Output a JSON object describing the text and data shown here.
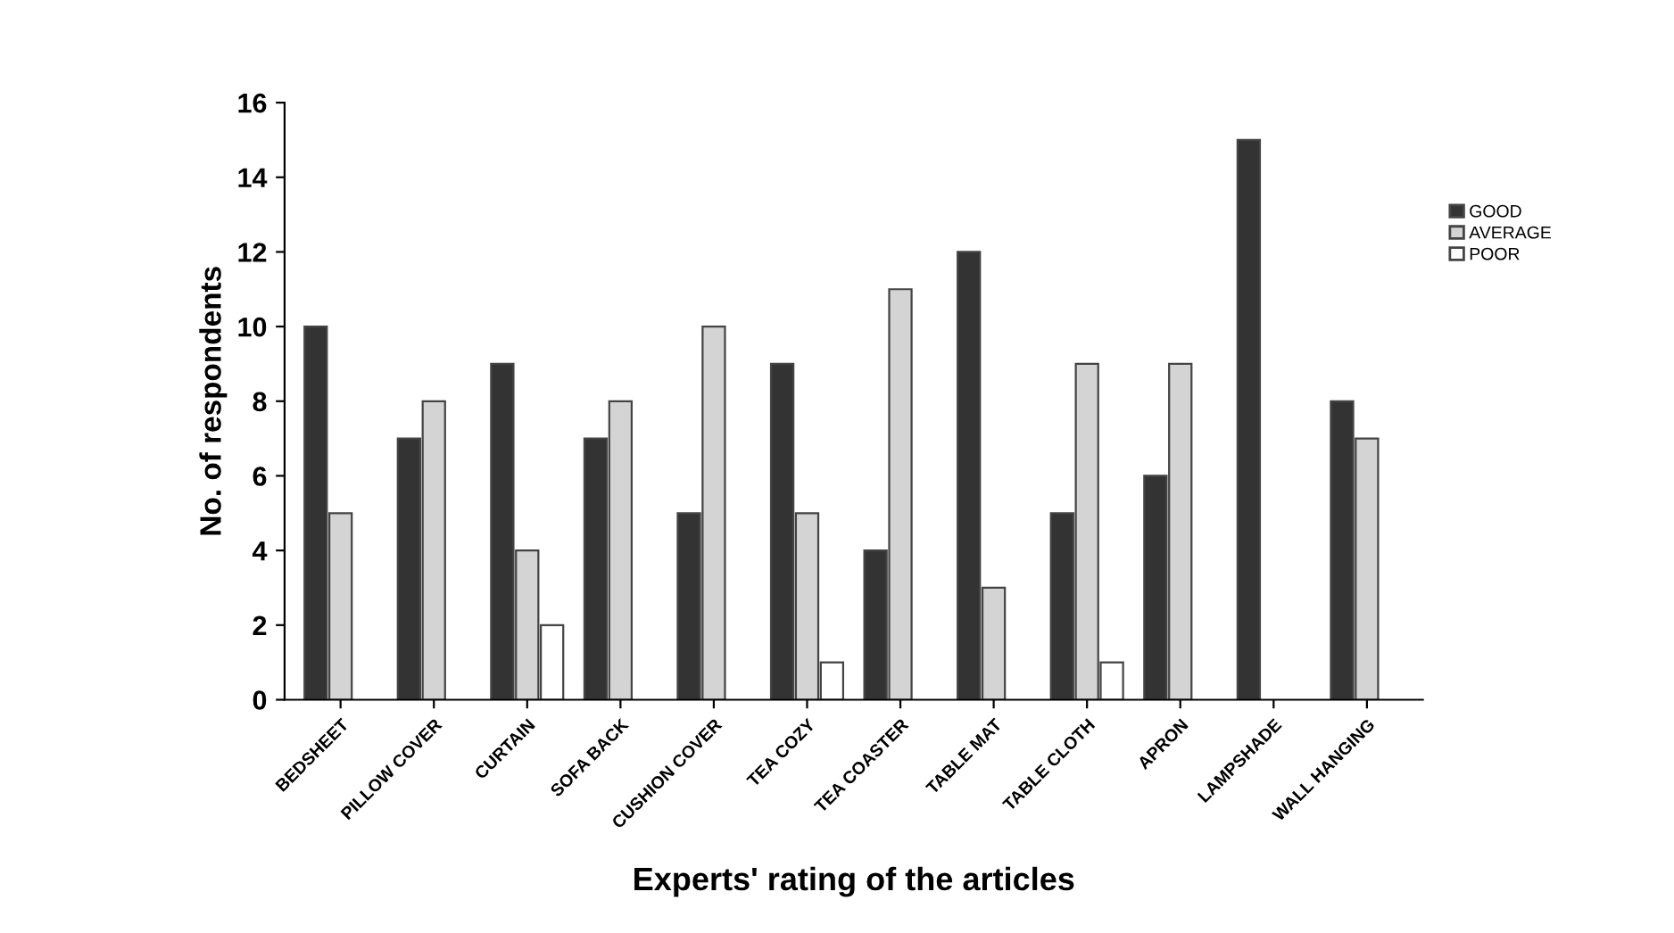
{
  "chart_data": {
    "type": "bar",
    "xlabel": "Experts' rating of the articles",
    "ylabel": "No. of respondents",
    "categories": [
      "BEDSHEET",
      "PILLOW COVER",
      "CURTAIN",
      "SOFA BACK",
      "CUSHION COVER",
      "TEA COZY",
      "TEA COASTER",
      "TABLE MAT",
      "TABLE CLOTH",
      "APRON",
      "LAMPSHADE",
      "WALL HANGING"
    ],
    "series": [
      {
        "name": "GOOD",
        "color": "#333333",
        "values": [
          10,
          7,
          9,
          7,
          5,
          9,
          4,
          12,
          5,
          6,
          15,
          8
        ]
      },
      {
        "name": "AVERAGE",
        "color": "#d4d4d4",
        "values": [
          5,
          8,
          4,
          8,
          10,
          5,
          11,
          3,
          9,
          9,
          null,
          7
        ]
      },
      {
        "name": "POOR",
        "color": "#ffffff",
        "values": [
          null,
          null,
          2,
          null,
          null,
          1,
          null,
          null,
          1,
          null,
          null,
          null
        ]
      }
    ],
    "ylim": [
      0,
      16
    ],
    "yticks": [
      0,
      2,
      4,
      6,
      8,
      10,
      12,
      14,
      16
    ],
    "grid": false,
    "legend": "right"
  }
}
